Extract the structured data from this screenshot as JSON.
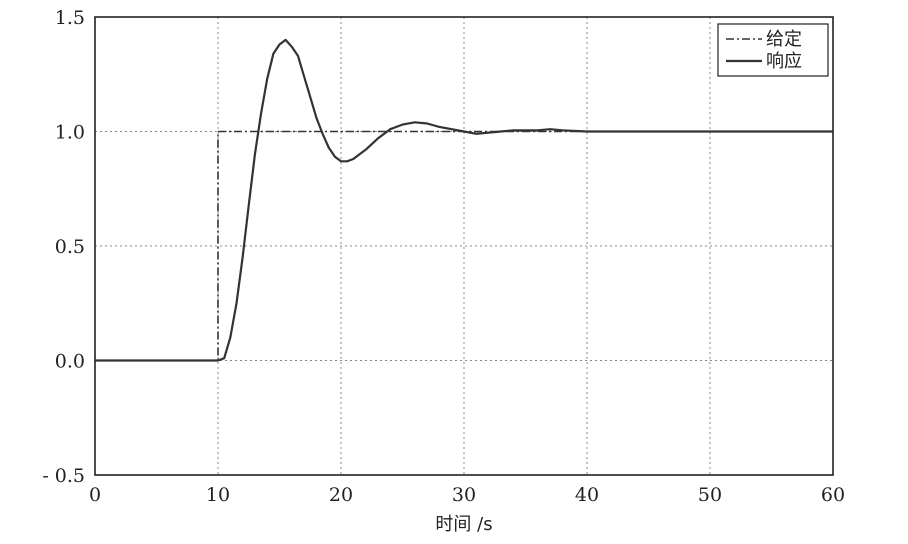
{
  "chart_data": {
    "type": "line",
    "xlabel": "时间 /s",
    "ylabel": "",
    "xlim": [
      0,
      60
    ],
    "ylim": [
      -0.5,
      1.5
    ],
    "xticks": [
      0,
      10,
      20,
      30,
      40,
      50,
      60
    ],
    "yticks": [
      1.5,
      1.0,
      0.5,
      0.0,
      -0.5
    ],
    "xtick_labels": [
      "0",
      "10",
      "20",
      "30",
      "40",
      "50",
      "60"
    ],
    "ytick_labels": [
      "1.5",
      "1.0",
      "0.5",
      "0.0",
      "- 0.5"
    ],
    "grid": true,
    "legend_position": "top-right",
    "series": [
      {
        "name": "给定",
        "style": "dash-dot",
        "color": "#333333",
        "x": [
          0,
          10,
          10,
          60
        ],
        "y": [
          0,
          0,
          1,
          1
        ]
      },
      {
        "name": "响应",
        "style": "solid",
        "color": "#333333",
        "x": [
          0,
          10,
          10.5,
          11,
          11.5,
          12,
          12.5,
          13,
          13.5,
          14,
          14.5,
          15,
          15.5,
          16,
          16.5,
          17,
          17.5,
          18,
          18.5,
          19,
          19.5,
          20,
          20.5,
          21,
          21.5,
          22,
          23,
          24,
          25,
          26,
          27,
          28,
          29,
          30,
          31,
          32,
          33,
          34,
          35,
          36,
          37,
          38,
          40,
          50,
          60
        ],
        "y": [
          0,
          0,
          0.01,
          0.1,
          0.25,
          0.45,
          0.68,
          0.9,
          1.08,
          1.23,
          1.34,
          1.38,
          1.4,
          1.37,
          1.33,
          1.24,
          1.15,
          1.06,
          0.99,
          0.93,
          0.89,
          0.87,
          0.87,
          0.88,
          0.9,
          0.92,
          0.97,
          1.01,
          1.03,
          1.04,
          1.035,
          1.02,
          1.01,
          1.0,
          0.99,
          0.995,
          1.0,
          1.005,
          1.005,
          1.005,
          1.01,
          1.005,
          1.0,
          1.0,
          1.0
        ]
      }
    ]
  }
}
